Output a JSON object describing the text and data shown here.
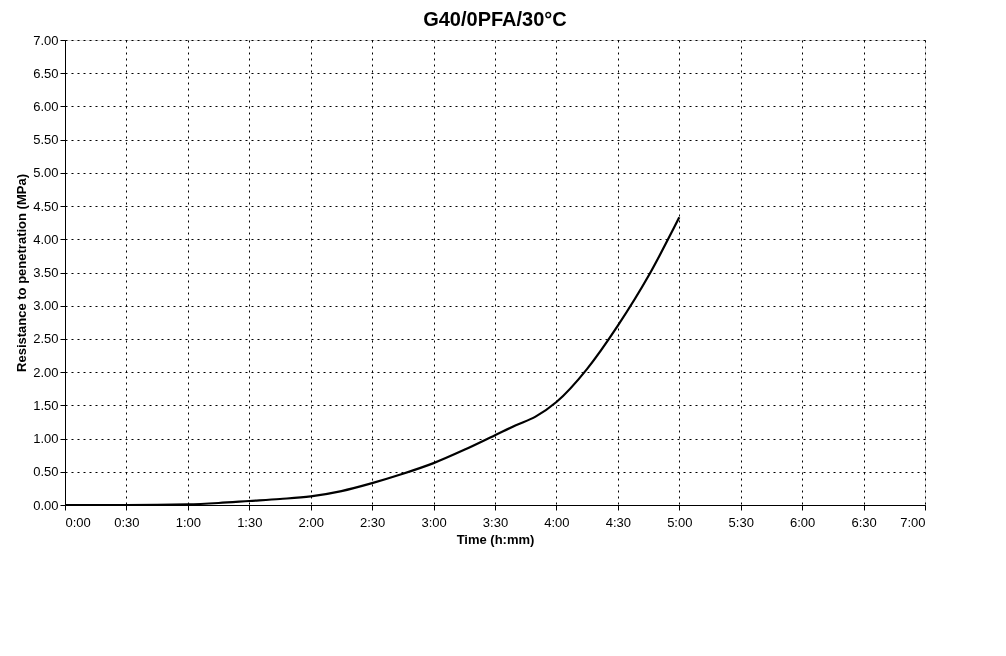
{
  "chart_data": {
    "type": "line",
    "title": "G40/0PFA/30°C",
    "xlabel": "Time (h:mm)",
    "ylabel": "Resistance to penetration (MPa)",
    "x": [
      0,
      0.5,
      1.0,
      1.25,
      1.5,
      1.75,
      2.0,
      2.25,
      2.5,
      2.75,
      3.0,
      3.25,
      3.5,
      3.67,
      3.83,
      4.0,
      4.25,
      4.5,
      4.75,
      5.0
    ],
    "series": [
      {
        "color": "#000000",
        "values": [
          0,
          0,
          0.01,
          0.03,
          0.06,
          0.09,
          0.13,
          0.21,
          0.33,
          0.47,
          0.63,
          0.83,
          1.05,
          1.2,
          1.33,
          1.55,
          2.05,
          2.7,
          3.45,
          4.33
        ]
      }
    ],
    "xlim": [
      0,
      7
    ],
    "xticks": [
      {
        "value": 0,
        "label": "0:00"
      },
      {
        "value": 0.5,
        "label": "0:30"
      },
      {
        "value": 1,
        "label": "1:00"
      },
      {
        "value": 1.5,
        "label": "1:30"
      },
      {
        "value": 2,
        "label": "2:00"
      },
      {
        "value": 2.5,
        "label": "2:30"
      },
      {
        "value": 3,
        "label": "3:00"
      },
      {
        "value": 3.5,
        "label": "3:30"
      },
      {
        "value": 4,
        "label": "4:00"
      },
      {
        "value": 4.5,
        "label": "4:30"
      },
      {
        "value": 5,
        "label": "5:00"
      },
      {
        "value": 5.5,
        "label": "5:30"
      },
      {
        "value": 6,
        "label": "6:00"
      },
      {
        "value": 6.5,
        "label": "6:30"
      },
      {
        "value": 7,
        "label": "7:00"
      }
    ],
    "ylim": [
      0,
      7
    ],
    "yticks": [
      {
        "value": 0,
        "label": "0.00"
      },
      {
        "value": 0.5,
        "label": "0.50"
      },
      {
        "value": 1,
        "label": "1.00"
      },
      {
        "value": 1.5,
        "label": "1.50"
      },
      {
        "value": 2,
        "label": "2.00"
      },
      {
        "value": 2.5,
        "label": "2.50"
      },
      {
        "value": 3,
        "label": "3.00"
      },
      {
        "value": 3.5,
        "label": "3.50"
      },
      {
        "value": 4,
        "label": "4.00"
      },
      {
        "value": 4.5,
        "label": "4.50"
      },
      {
        "value": 5,
        "label": "5.00"
      },
      {
        "value": 5.5,
        "label": "5.50"
      },
      {
        "value": 6,
        "label": "6.00"
      },
      {
        "value": 6.5,
        "label": "6.50"
      },
      {
        "value": 7,
        "label": "7.00"
      }
    ],
    "grid": true,
    "marker": "none",
    "line_style": "solid"
  }
}
